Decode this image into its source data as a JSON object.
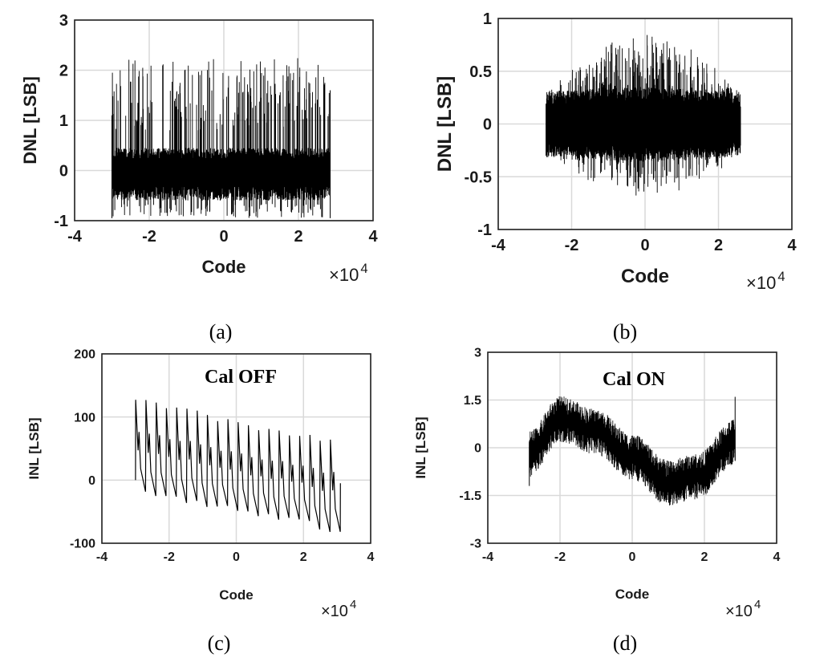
{
  "chart_data": [
    {
      "id": "a",
      "type": "line",
      "caption": "(a)",
      "xlabel": "Code",
      "ylabel": "DNL [LSB]",
      "x_multiplier_label": "×10",
      "x_multiplier_exp": "4",
      "xlim": [
        -4,
        4
      ],
      "ylim": [
        -1,
        3
      ],
      "xticks": [
        "-4",
        "-2",
        "0",
        "2",
        "4"
      ],
      "yticks": [
        "-1",
        "0",
        "1",
        "2",
        "3"
      ],
      "grid": true,
      "series": [
        {
          "description_range": "dense noise band",
          "x_start": -3.0,
          "x_end": 2.85,
          "core_band": [
            -0.6,
            0.45
          ],
          "spike_max": 2.25,
          "spike_min": -0.95
        }
      ]
    },
    {
      "id": "b",
      "type": "line",
      "caption": "(b)",
      "xlabel": "Code",
      "ylabel": "DNL [LSB]",
      "x_multiplier_label": "×10",
      "x_multiplier_exp": "4",
      "xlim": [
        -4,
        4
      ],
      "ylim": [
        -1,
        1
      ],
      "xticks": [
        "-4",
        "-2",
        "0",
        "2",
        "4"
      ],
      "yticks": [
        "-1",
        "-0.5",
        "0",
        "0.5",
        "1"
      ],
      "grid": true,
      "series": [
        {
          "x_start": -2.7,
          "x_end": 2.6,
          "core_band": [
            -0.3,
            0.3
          ],
          "spike_max": 0.88,
          "spike_min": -0.72
        }
      ]
    },
    {
      "id": "c",
      "type": "line",
      "caption": "(c)",
      "annotation": "Cal OFF",
      "xlabel": "Code",
      "ylabel": "INL [LSB]",
      "x_multiplier_label": "×10",
      "x_multiplier_exp": "4",
      "xlim": [
        -4,
        4
      ],
      "ylim": [
        -100,
        200
      ],
      "xticks": [
        "-4",
        "-2",
        "0",
        "2",
        "4"
      ],
      "yticks": [
        "-100",
        "0",
        "100",
        "200"
      ],
      "grid": true,
      "series": [
        {
          "x_start": -3.0,
          "x_end": 3.1,
          "sawtooth_periods": 20,
          "peak_start": 125,
          "peak_end": 60,
          "trough_start": -20,
          "trough_end": -80
        }
      ]
    },
    {
      "id": "d",
      "type": "line",
      "caption": "(d)",
      "annotation": "Cal ON",
      "xlabel": "Code",
      "ylabel": "INL [LSB]",
      "x_multiplier_label": "×10",
      "x_multiplier_exp": "4",
      "xlim": [
        -4,
        4
      ],
      "ylim": [
        -3,
        3
      ],
      "xticks": [
        "-4",
        "-2",
        "0",
        "2",
        "4"
      ],
      "yticks": [
        "-3",
        "-1.5",
        "0",
        "1.5",
        "3"
      ],
      "grid": true,
      "series": [
        {
          "x_start": -2.85,
          "x_end": 2.85,
          "center_points": [
            [
              -2.85,
              -0.2
            ],
            [
              -2.0,
              0.9
            ],
            [
              -1.0,
              0.5
            ],
            [
              0.0,
              -0.3
            ],
            [
              1.0,
              -1.1
            ],
            [
              1.8,
              -0.9
            ],
            [
              2.85,
              0.2
            ]
          ],
          "noise_amplitude": 0.6
        }
      ]
    }
  ]
}
